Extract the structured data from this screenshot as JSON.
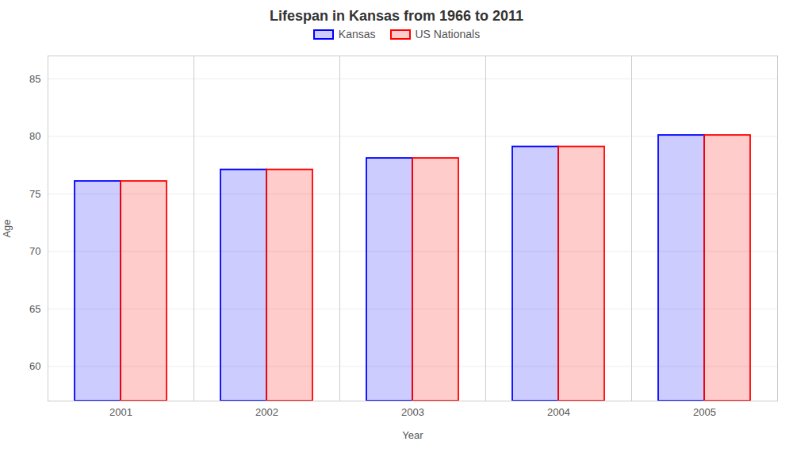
{
  "chart_data": {
    "type": "bar",
    "title": "Lifespan in Kansas from 1966 to 2011",
    "xlabel": "Year",
    "ylabel": "Age",
    "categories": [
      "2001",
      "2002",
      "2003",
      "2004",
      "2005"
    ],
    "series": [
      {
        "name": "Kansas",
        "color": "#0000ff",
        "values": [
          76.1,
          77.1,
          78.1,
          79.1,
          80.1
        ]
      },
      {
        "name": "US Nationals",
        "color": "#ff0000",
        "values": [
          76.1,
          77.1,
          78.1,
          79.1,
          80.1
        ]
      }
    ],
    "ylim": [
      57,
      87
    ],
    "yticks": [
      60,
      65,
      70,
      75,
      80,
      85
    ],
    "grid": true,
    "legend": "top"
  }
}
